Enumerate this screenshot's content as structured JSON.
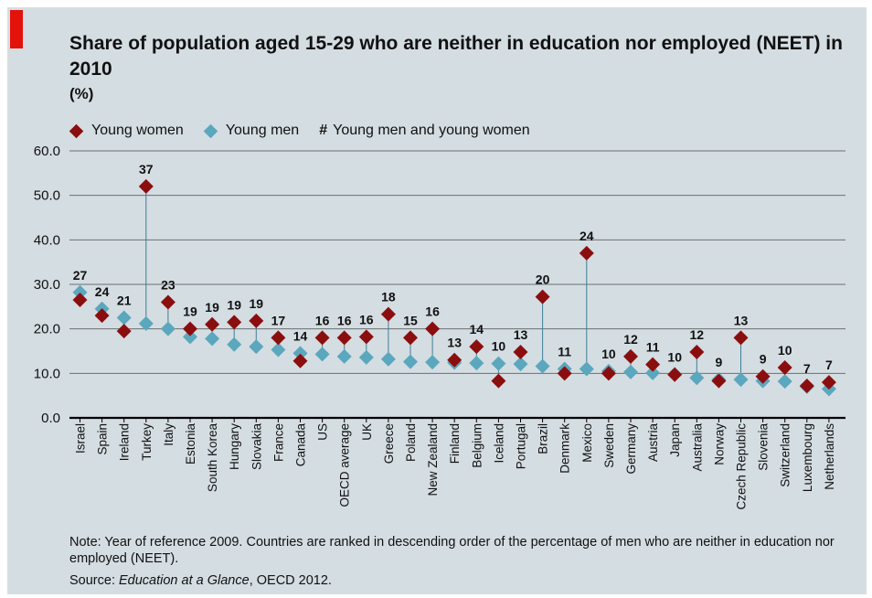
{
  "title": "Share of population aged 15-29 who are neither in education nor employed (NEET) in 2010",
  "unit": "(%)",
  "legend": {
    "women": "Young women",
    "men": "Young men",
    "total_symbol": "#",
    "total": "Young men and young women"
  },
  "colors": {
    "women": "#8b0e0e",
    "men": "#5ba7bd",
    "accent": "#e3120b",
    "background": "#d4dde2",
    "stem": "#3d7f97"
  },
  "note": "Note: Year of reference 2009. Countries are ranked in descending order of the percentage of  men who are neither in education nor employed (NEET).",
  "source_prefix": "Source: ",
  "source_title": "Education at a Glance",
  "source_suffix": ", OECD 2012.",
  "chart_data": {
    "type": "scatter",
    "ylim": [
      0,
      60
    ],
    "yticks": [
      "0.0",
      "10.0",
      "20.0",
      "30.0",
      "40.0",
      "50.0",
      "60.0"
    ],
    "grid": true,
    "legend_position": "top-left",
    "categories": [
      "Israel",
      "Spain",
      "Ireland",
      "Turkey",
      "Italy",
      "Estonia",
      "South Korea",
      "Hungary",
      "Slovakia",
      "France",
      "Canada",
      "US",
      "OECD average",
      "UK",
      "Greece",
      "Poland",
      "New Zealand",
      "Finland",
      "Belgium",
      "Iceland",
      "Portugal",
      "Brazil",
      "Denmark",
      "Mexico",
      "Sweden",
      "Germany",
      "Austria",
      "Japan",
      "Australia",
      "Norway",
      "Czech Republic",
      "Slovenia",
      "Switzerland",
      "Luxembourg",
      "Netherlands"
    ],
    "series": [
      {
        "name": "Young women",
        "values": [
          26.5,
          23,
          19.5,
          52,
          26,
          20,
          21,
          21.5,
          21.8,
          18,
          12.8,
          18,
          18,
          18.2,
          23.3,
          18,
          20,
          13,
          16,
          8.3,
          14.8,
          27.2,
          10,
          37,
          10,
          13.8,
          12,
          9.7,
          14.8,
          8.3,
          18,
          9.3,
          11.3,
          7.2,
          8
        ]
      },
      {
        "name": "Young men",
        "values": [
          28.2,
          24.5,
          22.5,
          21.2,
          20,
          18.2,
          17.8,
          16.5,
          16,
          15.3,
          14.5,
          14.3,
          13.8,
          13.6,
          13.2,
          12.6,
          12.5,
          12.4,
          12.3,
          12.2,
          12.1,
          11.6,
          11,
          11,
          10.5,
          10.3,
          10.1,
          9.8,
          9,
          8.6,
          8.6,
          8.3,
          8.2,
          7,
          6.5
        ]
      },
      {
        "name": "Young men and young women",
        "values": [
          27,
          24,
          21,
          37,
          23,
          19,
          19,
          19,
          19,
          17,
          14,
          16,
          16,
          16,
          18,
          15,
          16,
          13,
          14,
          10,
          13,
          20,
          11,
          24,
          10,
          12,
          11,
          10,
          12,
          9,
          13,
          9,
          10,
          7,
          7
        ]
      }
    ]
  }
}
